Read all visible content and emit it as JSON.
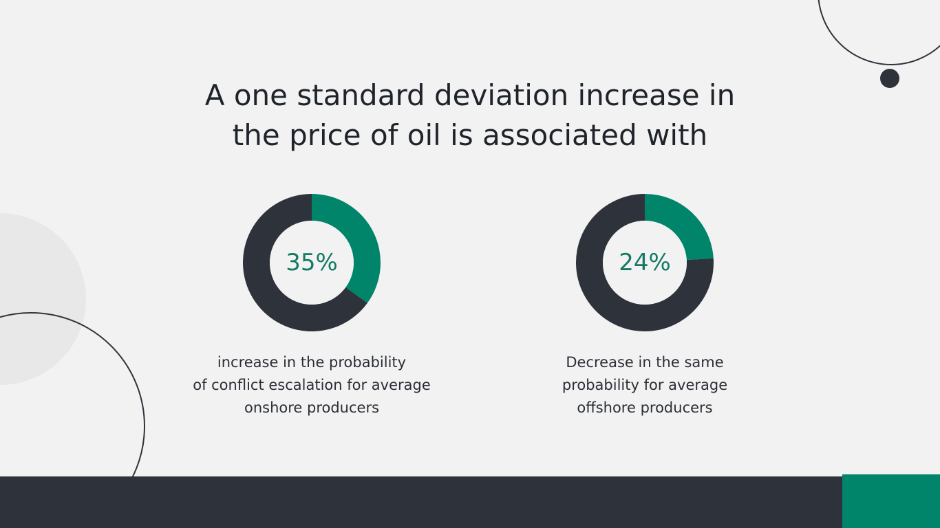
{
  "slide": {
    "title_lines": [
      "A one standard deviation increase in",
      "the price of oil is associated with"
    ]
  },
  "stats": [
    {
      "value_label": "35%",
      "caption_lines": [
        "increase in the probability",
        "of conflict escalation for average",
        "onshore producers"
      ]
    },
    {
      "value_label": "24%",
      "caption_lines": [
        "Decrease in the same",
        "probability for average",
        "offshore producers"
      ]
    }
  ],
  "chart_data": [
    {
      "type": "pie",
      "style": "donut",
      "value": 35,
      "unit": "%",
      "label": "35%",
      "slices": [
        {
          "name": "highlight",
          "value": 35,
          "color": "#00856a"
        },
        {
          "name": "remainder",
          "value": 65,
          "color": "#2e333b"
        }
      ],
      "caption": "increase in the probability of conflict escalation for average onshore producers"
    },
    {
      "type": "pie",
      "style": "donut",
      "value": 24,
      "unit": "%",
      "label": "24%",
      "slices": [
        {
          "name": "highlight",
          "value": 24,
          "color": "#00856a"
        },
        {
          "name": "remainder",
          "value": 76,
          "color": "#2e333b"
        }
      ],
      "caption": "Decrease in the same probability for average offshore producers"
    }
  ],
  "colors": {
    "background": "#f2f2f2",
    "dark": "#2e333b",
    "accent": "#00856a",
    "accent_text": "#127a63"
  }
}
